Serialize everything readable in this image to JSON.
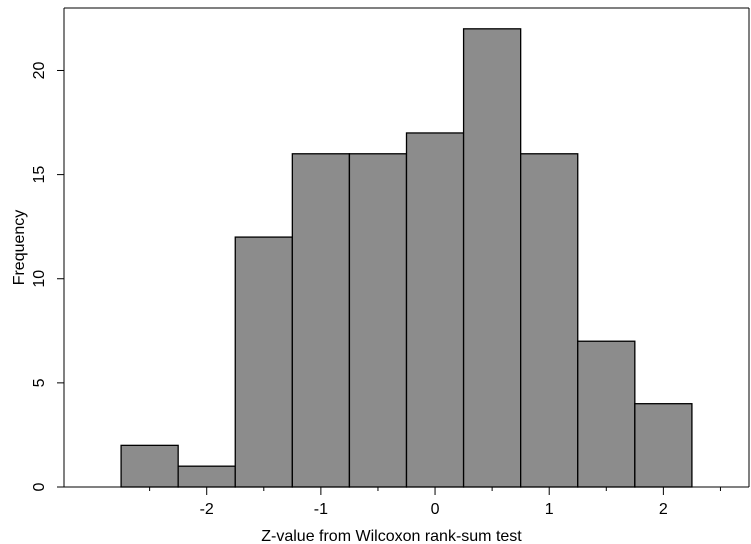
{
  "chart_data": {
    "type": "bar",
    "subtype": "histogram",
    "bin_edges": [
      -2.75,
      -2.25,
      -1.75,
      -1.25,
      -0.75,
      -0.25,
      0.25,
      0.75,
      1.25,
      1.75,
      2.25
    ],
    "values": [
      2,
      1,
      12,
      16,
      16,
      17,
      22,
      16,
      7,
      4
    ],
    "xlabel": "Z-value from Wilcoxon rank-sum test",
    "ylabel": "Frequency",
    "xlim": [
      -3.25,
      2.75
    ],
    "ylim": [
      0,
      23
    ],
    "x_major_ticks": [
      -2,
      -1,
      0,
      1,
      2
    ],
    "x_major_tick_labels": [
      "-2",
      "-1",
      "0",
      "1",
      "2"
    ],
    "x_minor_ticks": [
      -2.5,
      -1.5,
      -0.5,
      0.5,
      1.5,
      2.5
    ],
    "y_ticks": [
      0,
      5,
      10,
      15,
      20
    ],
    "y_tick_labels": [
      "0",
      "5",
      "10",
      "15",
      "20"
    ],
    "bar_color": "#8c8c8c",
    "bar_edge_color": "#000000",
    "grid": false
  }
}
